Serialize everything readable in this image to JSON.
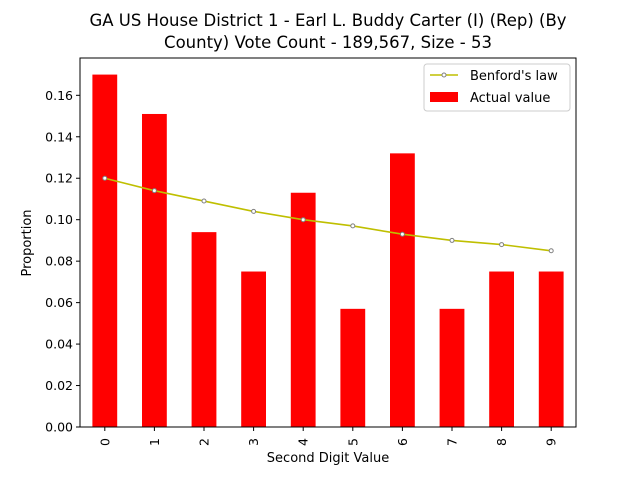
{
  "chart_data": {
    "type": "bar",
    "title_line1": "GA US House District 1 - Earl L. Buddy Carter (I) (Rep) (By",
    "title_line2": "County) Vote Count - 189,567, Size - 53",
    "xlabel": "Second Digit Value",
    "ylabel": "Proportion",
    "categories": [
      "0",
      "1",
      "2",
      "3",
      "4",
      "5",
      "6",
      "7",
      "8",
      "9"
    ],
    "ylim": [
      0,
      0.178
    ],
    "yticks": [
      "0.00",
      "0.02",
      "0.04",
      "0.06",
      "0.08",
      "0.10",
      "0.12",
      "0.14",
      "0.16"
    ],
    "legend_position": "top-right",
    "series": [
      {
        "name": "Actual value",
        "kind": "bar",
        "color": "#ff0000",
        "values": [
          0.17,
          0.151,
          0.094,
          0.075,
          0.113,
          0.057,
          0.132,
          0.057,
          0.075,
          0.075
        ]
      },
      {
        "name": "Benford's law",
        "kind": "line",
        "color": "#bfbf00",
        "values": [
          0.12,
          0.114,
          0.109,
          0.104,
          0.1,
          0.097,
          0.093,
          0.09,
          0.088,
          0.085
        ]
      }
    ]
  }
}
